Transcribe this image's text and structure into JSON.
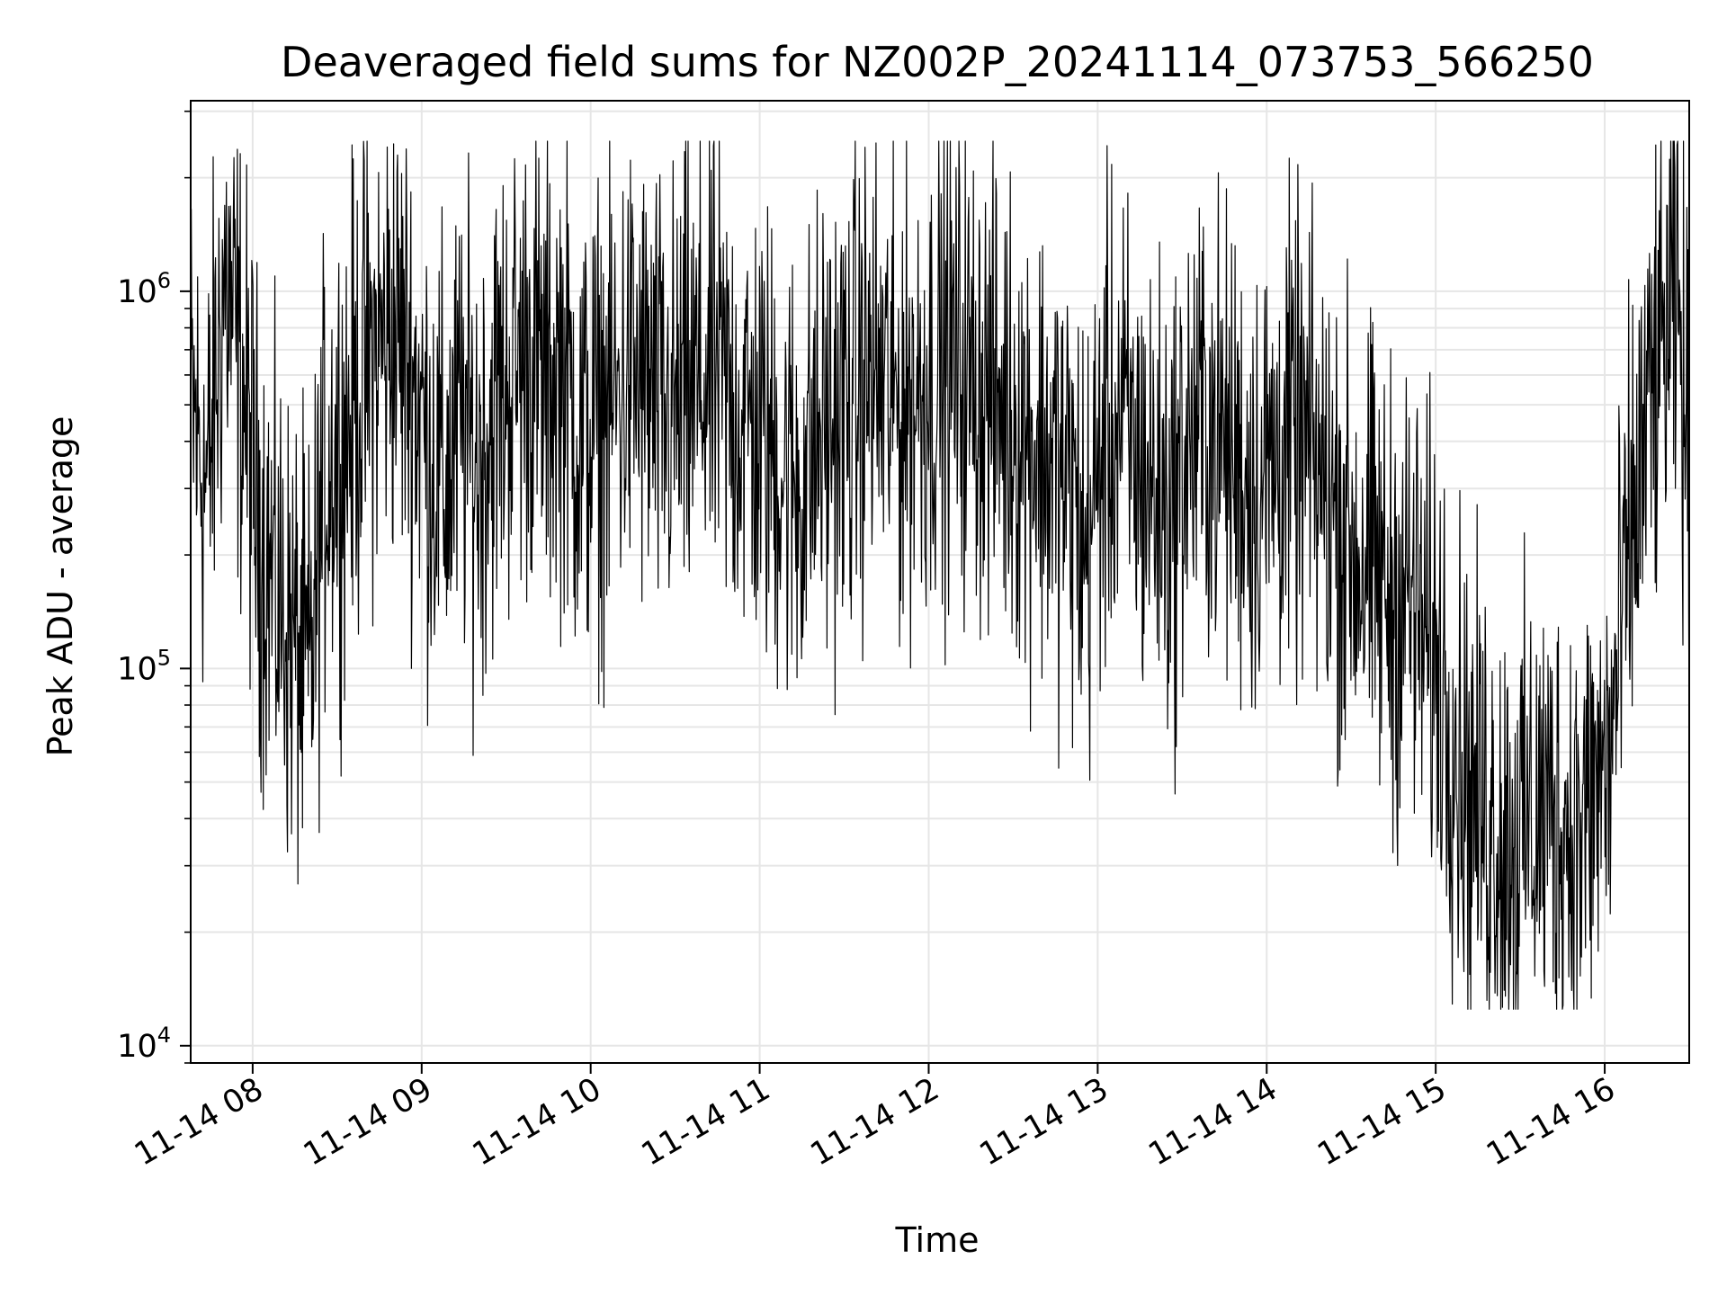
{
  "chart_data": {
    "type": "line",
    "title": "Deaveraged field sums for NZ002P_20241114_073753_566250",
    "xlabel": "Time",
    "ylabel": "Peak ADU - average",
    "y_scale": "log",
    "ylim": [
      9000,
      3200000
    ],
    "xlim": [
      "2024-11-14T07:38",
      "2024-11-14T16:30"
    ],
    "grid": true,
    "line_color": "#000000",
    "grid_color": "#e6e6e6",
    "x_ticks": [
      {
        "value": "2024-11-14T08:00",
        "label": "11-14 08"
      },
      {
        "value": "2024-11-14T09:00",
        "label": "11-14 09"
      },
      {
        "value": "2024-11-14T10:00",
        "label": "11-14 10"
      },
      {
        "value": "2024-11-14T11:00",
        "label": "11-14 11"
      },
      {
        "value": "2024-11-14T12:00",
        "label": "11-14 12"
      },
      {
        "value": "2024-11-14T13:00",
        "label": "11-14 13"
      },
      {
        "value": "2024-11-14T14:00",
        "label": "11-14 14"
      },
      {
        "value": "2024-11-14T15:00",
        "label": "11-14 15"
      },
      {
        "value": "2024-11-14T16:00",
        "label": "11-14 16"
      }
    ],
    "y_ticks": [
      {
        "value": 10000,
        "base": "10",
        "exp": "4"
      },
      {
        "value": 100000,
        "base": "10",
        "exp": "5"
      },
      {
        "value": 1000000,
        "base": "10",
        "exp": "6"
      }
    ],
    "series": [
      {
        "x": [
          "2024-11-14T07:38",
          "2024-11-14T07:44",
          "2024-11-14T07:50",
          "2024-11-14T07:56",
          "2024-11-14T08:02",
          "2024-11-14T08:08",
          "2024-11-14T08:14",
          "2024-11-14T08:20",
          "2024-11-14T08:26",
          "2024-11-14T08:32",
          "2024-11-14T08:38",
          "2024-11-14T08:44",
          "2024-11-14T08:50",
          "2024-11-14T08:56",
          "2024-11-14T09:02",
          "2024-11-14T09:08",
          "2024-11-14T09:14",
          "2024-11-14T09:20",
          "2024-11-14T09:26",
          "2024-11-14T09:32",
          "2024-11-14T09:38",
          "2024-11-14T09:44",
          "2024-11-14T09:50",
          "2024-11-14T09:56",
          "2024-11-14T10:02",
          "2024-11-14T10:08",
          "2024-11-14T10:14",
          "2024-11-14T10:20",
          "2024-11-14T10:26",
          "2024-11-14T10:32",
          "2024-11-14T10:38",
          "2024-11-14T10:44",
          "2024-11-14T10:50",
          "2024-11-14T10:56",
          "2024-11-14T11:02",
          "2024-11-14T11:08",
          "2024-11-14T11:14",
          "2024-11-14T11:20",
          "2024-11-14T11:26",
          "2024-11-14T11:32",
          "2024-11-14T11:38",
          "2024-11-14T11:44",
          "2024-11-14T11:50",
          "2024-11-14T11:56",
          "2024-11-14T12:02",
          "2024-11-14T12:08",
          "2024-11-14T12:14",
          "2024-11-14T12:20",
          "2024-11-14T12:26",
          "2024-11-14T12:32",
          "2024-11-14T12:38",
          "2024-11-14T12:44",
          "2024-11-14T12:50",
          "2024-11-14T12:56",
          "2024-11-14T13:02",
          "2024-11-14T13:08",
          "2024-11-14T13:14",
          "2024-11-14T13:20",
          "2024-11-14T13:26",
          "2024-11-14T13:32",
          "2024-11-14T13:38",
          "2024-11-14T13:44",
          "2024-11-14T13:50",
          "2024-11-14T13:56",
          "2024-11-14T14:02",
          "2024-11-14T14:08",
          "2024-11-14T14:14",
          "2024-11-14T14:20",
          "2024-11-14T14:26",
          "2024-11-14T14:32",
          "2024-11-14T14:38",
          "2024-11-14T14:44",
          "2024-11-14T14:50",
          "2024-11-14T14:56",
          "2024-11-14T15:02",
          "2024-11-14T15:08",
          "2024-11-14T15:14",
          "2024-11-14T15:20",
          "2024-11-14T15:26",
          "2024-11-14T15:32",
          "2024-11-14T15:38",
          "2024-11-14T15:44",
          "2024-11-14T15:50",
          "2024-11-14T15:56",
          "2024-11-14T16:02",
          "2024-11-14T16:08",
          "2024-11-14T16:14",
          "2024-11-14T16:20",
          "2024-11-14T16:26",
          "2024-11-14T16:30"
        ],
        "y": [
          500000,
          300000,
          1100000,
          600000,
          250000,
          160000,
          120000,
          90000,
          350000,
          400000,
          550000,
          700000,
          800000,
          650000,
          400000,
          300000,
          450000,
          350000,
          500000,
          600000,
          700000,
          550000,
          650000,
          400000,
          450000,
          500000,
          600000,
          550000,
          450000,
          500000,
          550000,
          600000,
          500000,
          450000,
          400000,
          350000,
          300000,
          400000,
          450000,
          500000,
          600000,
          550000,
          500000,
          550000,
          600000,
          650000,
          600000,
          550000,
          500000,
          450000,
          400000,
          350000,
          300000,
          200000,
          400000,
          450000,
          350000,
          300000,
          250000,
          400000,
          450000,
          400000,
          350000,
          300000,
          350000,
          400000,
          380000,
          300000,
          250000,
          200000,
          180000,
          150000,
          160000,
          120000,
          100000,
          60000,
          45000,
          40000,
          35000,
          38000,
          42000,
          40000,
          36000,
          45000,
          60000,
          180000,
          400000,
          700000,
          900000,
          300000
        ]
      }
    ]
  }
}
